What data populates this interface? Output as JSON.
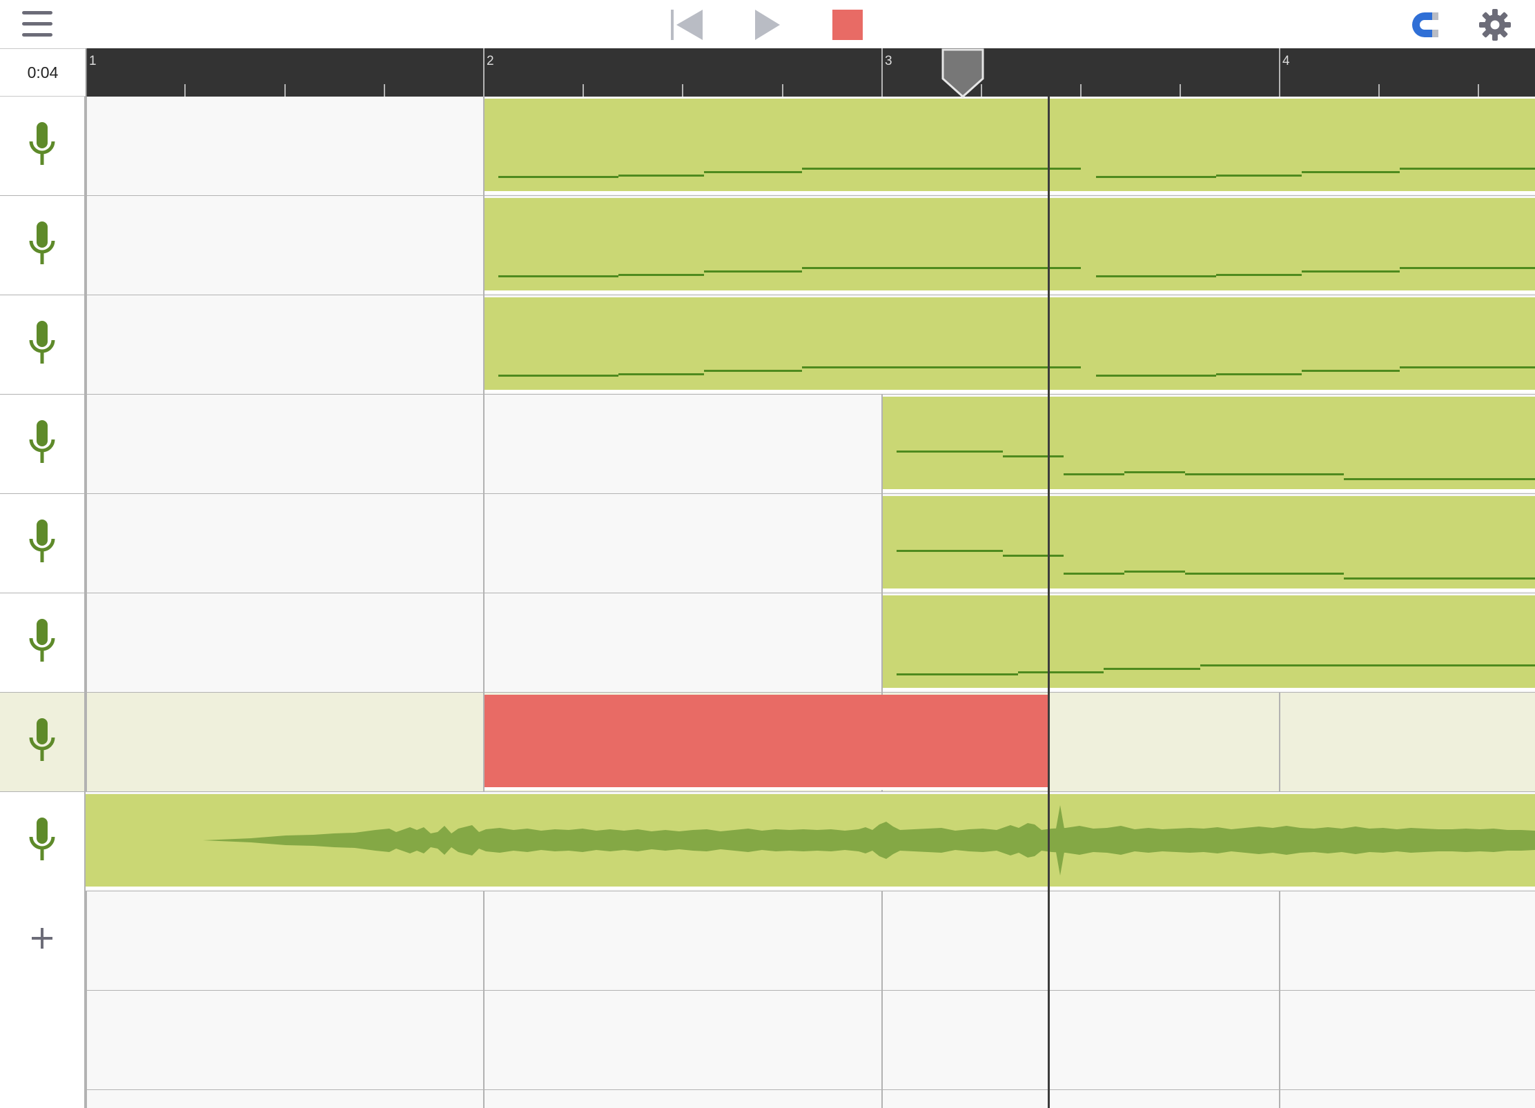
{
  "time": "0:04",
  "ruler": {
    "bars": [
      "1",
      "2",
      "3",
      "4"
    ]
  },
  "toolbar": {
    "menu_icon": "hamburger-menu-icon",
    "rewind_icon": "skip-to-start-icon",
    "play_icon": "play-icon",
    "record_icon": "record-stop-icon",
    "snap_icon": "magnet-icon",
    "settings_icon": "gear-icon"
  },
  "tracks": [
    {
      "icon": "microphone-icon",
      "selected": false
    },
    {
      "icon": "microphone-icon",
      "selected": false
    },
    {
      "icon": "microphone-icon",
      "selected": false
    },
    {
      "icon": "microphone-icon",
      "selected": false
    },
    {
      "icon": "microphone-icon",
      "selected": false
    },
    {
      "icon": "microphone-icon",
      "selected": false
    },
    {
      "icon": "microphone-icon",
      "selected": true
    },
    {
      "icon": "microphone-icon",
      "selected": false
    }
  ],
  "add_track_icon": "plus-icon",
  "colors": {
    "region": "#cad774",
    "recording_region": "#e86b65",
    "note": "#4e8a1e",
    "waveform": "#84a845",
    "icon_green": "#5e8a2a",
    "accent_blue": "#2f6fd6",
    "ruler_bg": "#333333"
  }
}
